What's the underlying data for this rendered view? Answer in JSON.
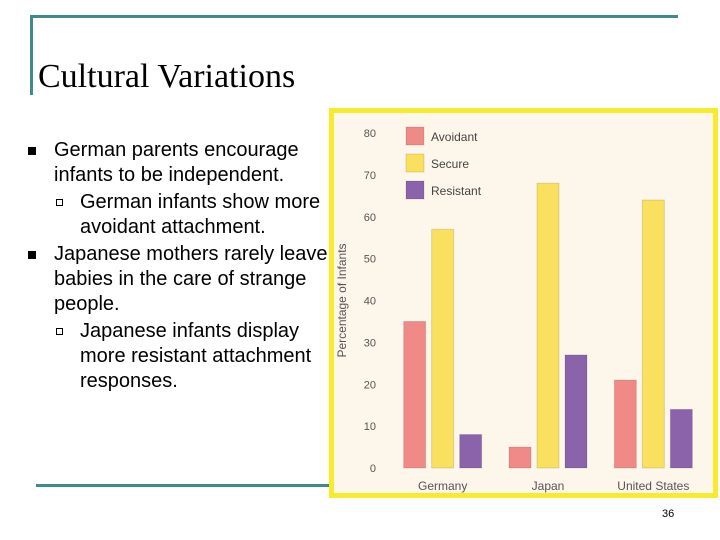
{
  "slide": {
    "title": "Cultural Variations",
    "page_number": "36",
    "bullets": [
      {
        "text": "German parents encourage infants to be independent.",
        "sub": "German infants show more avoidant attachment."
      },
      {
        "text": "Japanese mothers rarely leave babies in the care of strange people.",
        "sub": "Japanese infants display more resistant attachment responses."
      }
    ]
  },
  "chart_data": {
    "type": "bar",
    "categories": [
      "Germany",
      "Japan",
      "United States"
    ],
    "series": [
      {
        "name": "Avoidant",
        "values": [
          35,
          5,
          21
        ],
        "color": "#f08a86"
      },
      {
        "name": "Secure",
        "values": [
          57,
          68,
          64
        ],
        "color": "#f9e05e"
      },
      {
        "name": "Resistant",
        "values": [
          8,
          27,
          14
        ],
        "color": "#8a63ab"
      }
    ],
    "ylabel": "Percentage of Infants",
    "ylim": [
      0,
      80
    ],
    "yticks": [
      0,
      10,
      20,
      30,
      40,
      50,
      60,
      70,
      80
    ],
    "legend_position": "top-left"
  }
}
